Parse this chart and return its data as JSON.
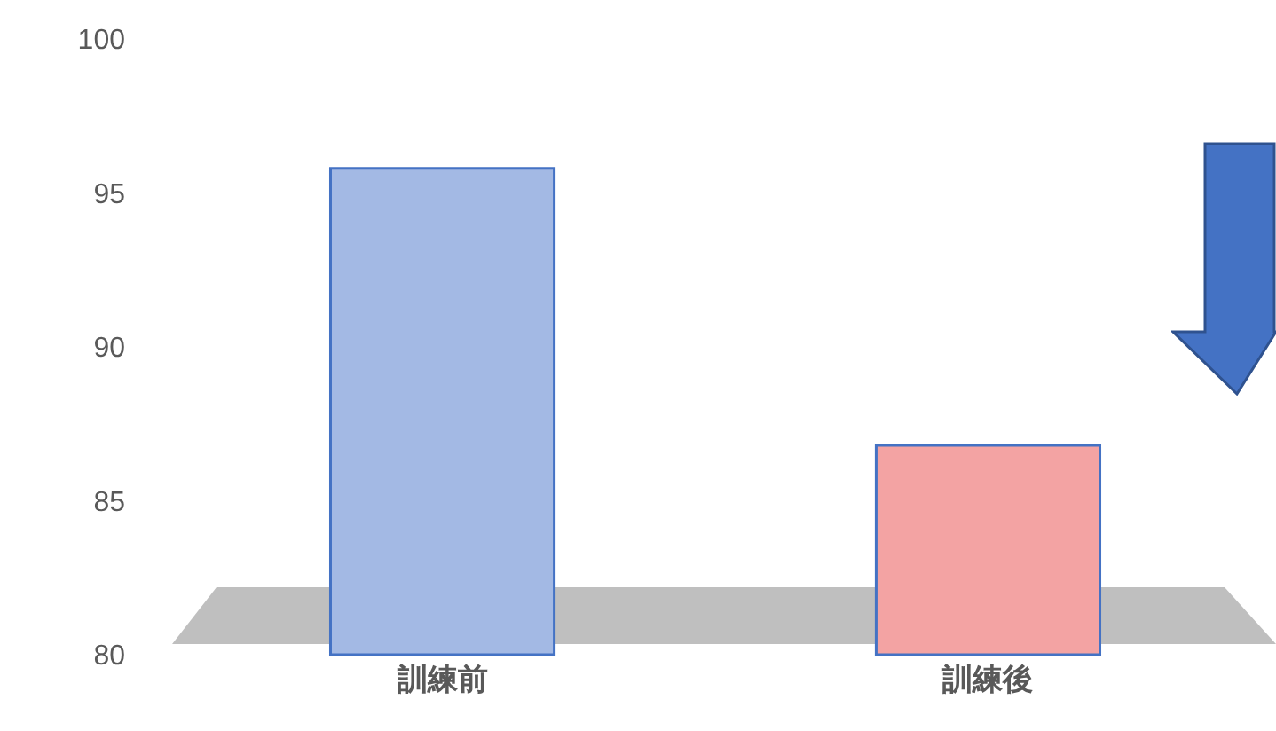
{
  "chart_data": {
    "type": "bar",
    "categories": [
      "訓練前",
      "訓練後"
    ],
    "values": [
      95.8,
      86.8
    ],
    "colors": [
      "#a3b9e4",
      "#f3a3a3"
    ],
    "ylim": [
      80,
      100
    ],
    "yticks": [
      80,
      85,
      90,
      95,
      100
    ],
    "grid": false,
    "legend": false
  }
}
